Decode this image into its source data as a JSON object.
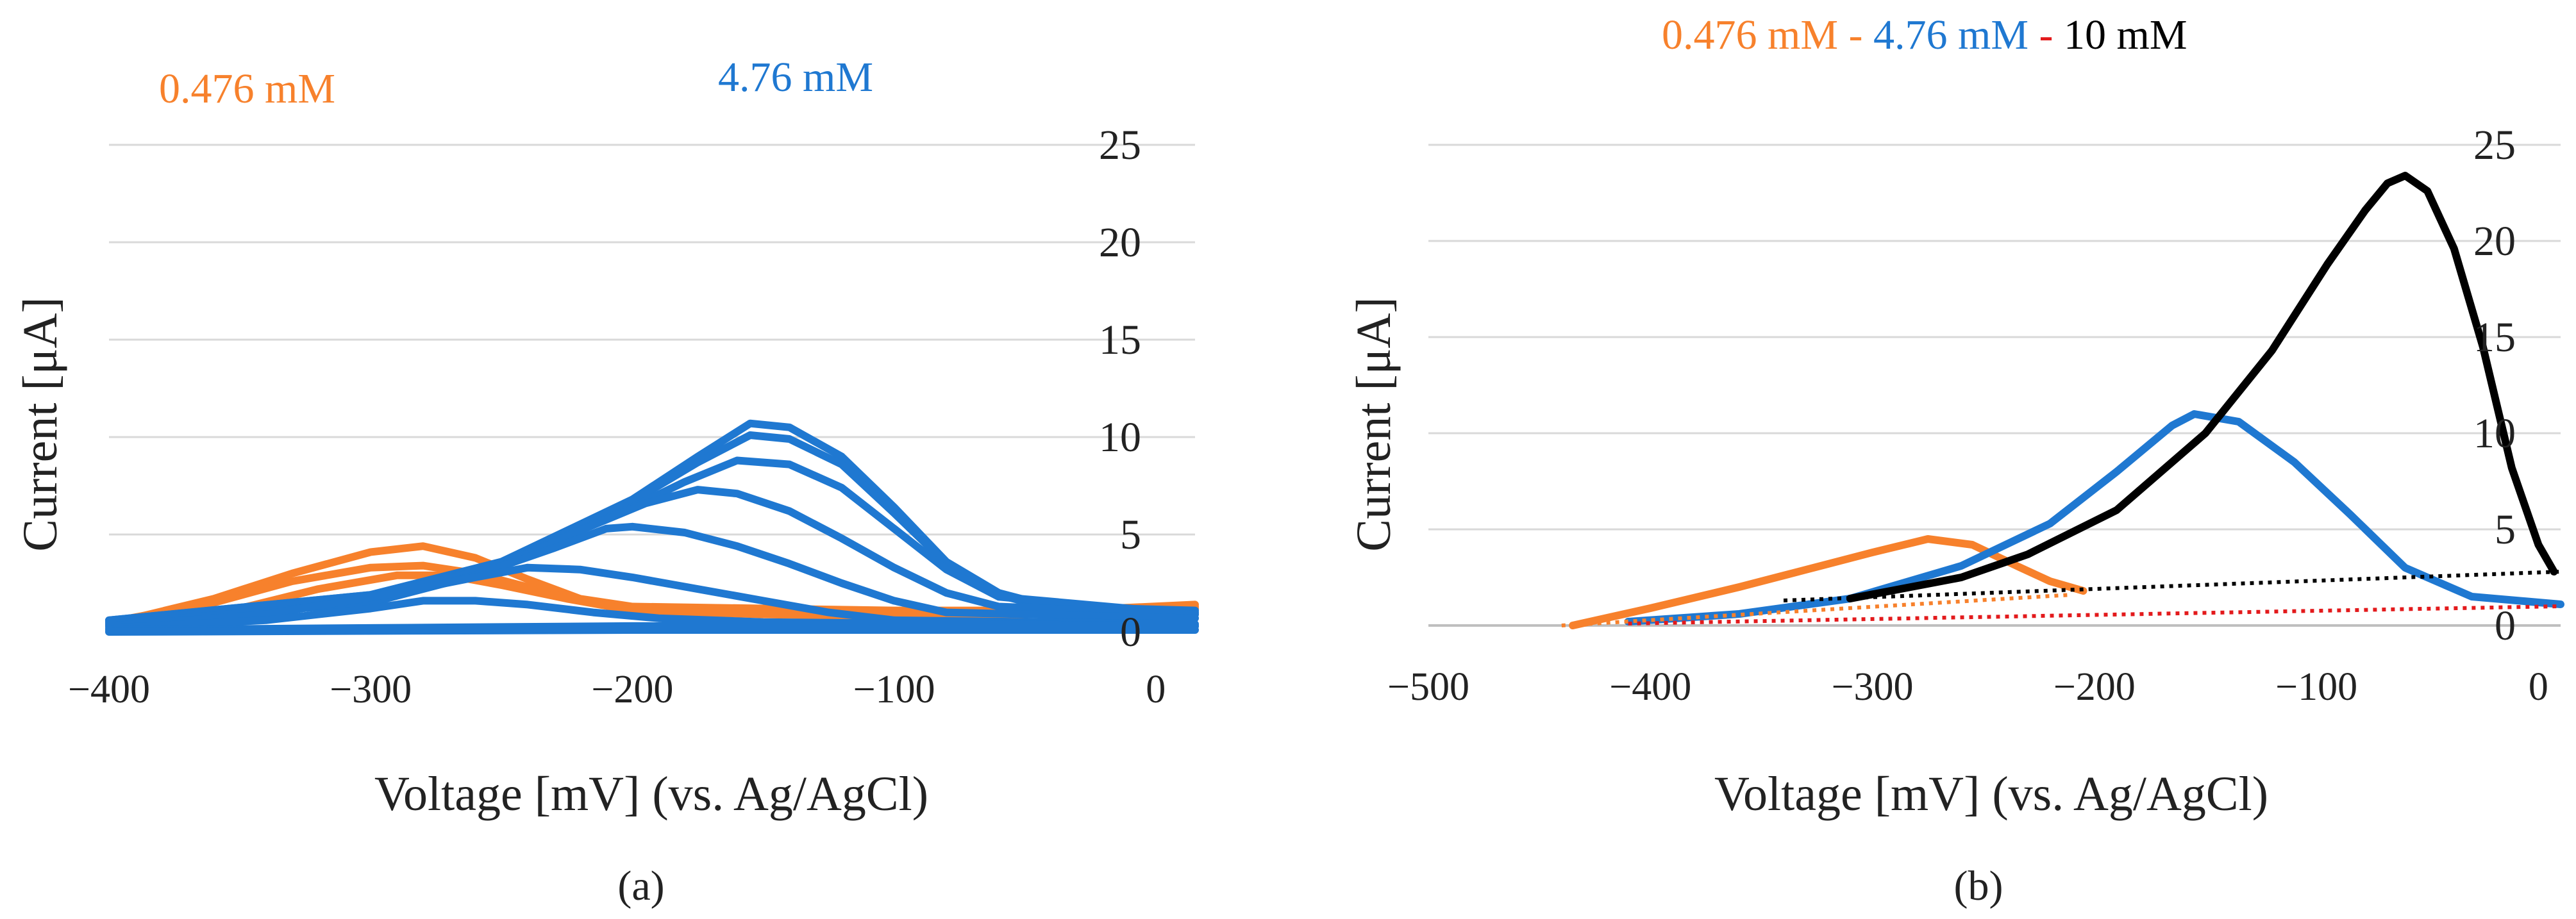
{
  "colors": {
    "orange": "#F7812C",
    "blue": "#1F78D1",
    "black": "#000000",
    "red": "#E31A1C",
    "grid": "#D9D9D9",
    "axis": "#BFBFBF",
    "text": "#222222"
  },
  "chart_data": [
    {
      "id": "a",
      "type": "line",
      "panel_label": "(a)",
      "xlabel": "Voltage [mV] (vs. Ag/AgCl)",
      "ylabel": "Current [μA]",
      "xlim": [
        -400,
        15
      ],
      "ylim": [
        0,
        25
      ],
      "xticks": [
        -400,
        -300,
        -200,
        -100,
        0
      ],
      "xtick_labels": [
        "−400",
        "−300",
        "−200",
        "−100",
        "0"
      ],
      "yticks": [
        0,
        5,
        10,
        15,
        20,
        25
      ],
      "ytick_labels": [
        "0",
        "5",
        "10",
        "15",
        "20",
        "25"
      ],
      "legend": [
        {
          "text": "0.476 mM",
          "color": "#F7812C"
        },
        {
          "text": "4.76 mM",
          "color": "#1F78D1"
        }
      ],
      "series": [
        {
          "name": "0.476 mM",
          "color": "#F7812C",
          "dashed": false,
          "width": 12,
          "points": [
            [
              -400,
              0.4
            ],
            [
              -360,
              1.7
            ],
            [
              -330,
              3.0
            ],
            [
              -300,
              4.1
            ],
            [
              -280,
              4.4
            ],
            [
              -260,
              3.8
            ],
            [
              -240,
              2.7
            ],
            [
              -220,
              1.7
            ],
            [
              -200,
              1.3
            ],
            [
              -150,
              1.2
            ],
            [
              -100,
              1.1
            ],
            [
              -50,
              1.1
            ],
            [
              15,
              1.3
            ]
          ]
        },
        {
          "name": "0.476 mM",
          "color": "#F7812C",
          "dashed": false,
          "width": 12,
          "points": [
            [
              -400,
              0.5
            ],
            [
              -360,
              1.5
            ],
            [
              -330,
              2.6
            ],
            [
              -300,
              3.3
            ],
            [
              -280,
              3.4
            ],
            [
              -260,
              3.0
            ],
            [
              -240,
              2.3
            ],
            [
              -220,
              1.6
            ],
            [
              -200,
              1.2
            ],
            [
              -150,
              1.0
            ],
            [
              -100,
              0.9
            ],
            [
              -50,
              1.0
            ],
            [
              15,
              1.4
            ]
          ]
        },
        {
          "name": "0.476 mM",
          "color": "#F7812C",
          "dashed": false,
          "width": 12,
          "points": [
            [
              -400,
              0.3
            ],
            [
              -350,
              1.2
            ],
            [
              -320,
              2.2
            ],
            [
              -290,
              2.9
            ],
            [
              -270,
              2.9
            ],
            [
              -250,
              2.4
            ],
            [
              -225,
              1.7
            ],
            [
              -200,
              1.1
            ],
            [
              -150,
              0.9
            ],
            [
              -100,
              0.8
            ],
            [
              -50,
              0.9
            ],
            [
              15,
              1.2
            ]
          ]
        },
        {
          "name": "4.76 mM",
          "color": "#1F78D1",
          "dashed": false,
          "width": 12,
          "points": [
            [
              -400,
              0.6
            ],
            [
              -300,
              1.9
            ],
            [
              -250,
              3.6
            ],
            [
              -200,
              6.8
            ],
            [
              -175,
              9.0
            ],
            [
              -155,
              10.7
            ],
            [
              -140,
              10.5
            ],
            [
              -120,
              9.0
            ],
            [
              -100,
              6.4
            ],
            [
              -80,
              3.6
            ],
            [
              -60,
              2.0
            ],
            [
              -40,
              1.3
            ],
            [
              15,
              1.1
            ]
          ]
        },
        {
          "name": "4.76 mM",
          "color": "#1F78D1",
          "dashed": false,
          "width": 12,
          "points": [
            [
              -400,
              0.6
            ],
            [
              -300,
              1.9
            ],
            [
              -250,
              3.6
            ],
            [
              -200,
              6.7
            ],
            [
              -175,
              8.7
            ],
            [
              -155,
              10.1
            ],
            [
              -140,
              9.9
            ],
            [
              -120,
              8.6
            ],
            [
              -100,
              6.1
            ],
            [
              -80,
              3.5
            ],
            [
              -60,
              1.9
            ],
            [
              -40,
              1.2
            ],
            [
              15,
              1.0
            ]
          ]
        },
        {
          "name": "4.76 mM",
          "color": "#1F78D1",
          "dashed": false,
          "width": 12,
          "points": [
            [
              -400,
              0.5
            ],
            [
              -300,
              1.8
            ],
            [
              -250,
              3.5
            ],
            [
              -200,
              6.4
            ],
            [
              -180,
              7.7
            ],
            [
              -160,
              8.8
            ],
            [
              -140,
              8.6
            ],
            [
              -120,
              7.4
            ],
            [
              -100,
              5.3
            ],
            [
              -80,
              3.2
            ],
            [
              -60,
              1.8
            ],
            [
              15,
              0.9
            ]
          ]
        },
        {
          "name": "4.76 mM",
          "color": "#1F78D1",
          "dashed": false,
          "width": 12,
          "points": [
            [
              -400,
              0.5
            ],
            [
              -300,
              1.8
            ],
            [
              -250,
              3.4
            ],
            [
              -220,
              5.2
            ],
            [
              -195,
              6.6
            ],
            [
              -175,
              7.3
            ],
            [
              -160,
              7.1
            ],
            [
              -140,
              6.2
            ],
            [
              -120,
              4.8
            ],
            [
              -100,
              3.3
            ],
            [
              -80,
              2.0
            ],
            [
              -60,
              1.3
            ],
            [
              15,
              0.9
            ]
          ]
        },
        {
          "name": "4.76 mM",
          "color": "#1F78D1",
          "dashed": false,
          "width": 12,
          "points": [
            [
              -400,
              0.4
            ],
            [
              -300,
              1.5
            ],
            [
              -260,
              2.9
            ],
            [
              -230,
              4.3
            ],
            [
              -210,
              5.3
            ],
            [
              -200,
              5.4
            ],
            [
              -180,
              5.1
            ],
            [
              -160,
              4.4
            ],
            [
              -140,
              3.5
            ],
            [
              -120,
              2.5
            ],
            [
              -100,
              1.6
            ],
            [
              -80,
              1.0
            ],
            [
              15,
              0.7
            ]
          ]
        },
        {
          "name": "4.76 mM",
          "color": "#1F78D1",
          "dashed": false,
          "width": 12,
          "points": [
            [
              -400,
              0.3
            ],
            [
              -340,
              0.9
            ],
            [
              -290,
              2.0
            ],
            [
              -260,
              2.8
            ],
            [
              -240,
              3.3
            ],
            [
              -220,
              3.2
            ],
            [
              -200,
              2.8
            ],
            [
              -175,
              2.2
            ],
            [
              -150,
              1.6
            ],
            [
              -125,
              1.0
            ],
            [
              -100,
              0.6
            ],
            [
              15,
              0.4
            ]
          ]
        },
        {
          "name": "4.76 mM",
          "color": "#1F78D1",
          "dashed": false,
          "width": 12,
          "points": [
            [
              -400,
              0.2
            ],
            [
              -340,
              0.6
            ],
            [
              -300,
              1.2
            ],
            [
              -280,
              1.6
            ],
            [
              -260,
              1.6
            ],
            [
              -240,
              1.4
            ],
            [
              -215,
              1.0
            ],
            [
              -190,
              0.7
            ],
            [
              -150,
              0.5
            ],
            [
              15,
              0.3
            ]
          ]
        },
        {
          "name": "4.76 mM",
          "color": "#1F78D1",
          "dashed": false,
          "width": 12,
          "points": [
            [
              -400,
              0.1
            ],
            [
              -300,
              0.2
            ],
            [
              -200,
              0.3
            ],
            [
              -100,
              0.3
            ],
            [
              15,
              0.3
            ]
          ]
        },
        {
          "name": "4.76 mM",
          "color": "#1F78D1",
          "dashed": false,
          "width": 12,
          "points": [
            [
              -400,
              0.0
            ],
            [
              -200,
              0.1
            ],
            [
              15,
              0.1
            ]
          ]
        }
      ]
    },
    {
      "id": "b",
      "type": "line",
      "panel_label": "(b)",
      "xlabel": "Voltage [mV] (vs. Ag/AgCl)",
      "ylabel": "Current [μA]",
      "xlim": [
        -500,
        10
      ],
      "ylim": [
        0,
        25
      ],
      "xticks": [
        -500,
        -400,
        -300,
        -200,
        -100,
        0
      ],
      "xtick_labels": [
        "−500",
        "−400",
        "−300",
        "−200",
        "−100",
        "0"
      ],
      "yticks": [
        0,
        5,
        10,
        15,
        20,
        25
      ],
      "ytick_labels": [
        "0",
        "5",
        "10",
        "15",
        "20",
        "25"
      ],
      "legend": [
        {
          "text": "0.476 mM",
          "color": "#F7812C"
        },
        {
          "text": " - ",
          "color": "#F7812C"
        },
        {
          "text": "4.76 mM",
          "color": "#1F78D1"
        },
        {
          "text": " - ",
          "color": "#E31A1C"
        },
        {
          "text": "10 mM",
          "color": "#000000"
        }
      ],
      "series": [
        {
          "name": "0.476 mM",
          "color": "#F7812C",
          "dashed": false,
          "width": 12,
          "points": [
            [
              -435,
              0.0
            ],
            [
              -400,
              0.9
            ],
            [
              -360,
              2.0
            ],
            [
              -330,
              2.9
            ],
            [
              -300,
              3.8
            ],
            [
              -275,
              4.5
            ],
            [
              -255,
              4.2
            ],
            [
              -235,
              3.1
            ],
            [
              -220,
              2.3
            ],
            [
              -205,
              1.8
            ]
          ]
        },
        {
          "name": "4.76 mM",
          "color": "#1F78D1",
          "dashed": false,
          "width": 12,
          "points": [
            [
              -410,
              0.2
            ],
            [
              -360,
              0.6
            ],
            [
              -310,
              1.4
            ],
            [
              -260,
              3.1
            ],
            [
              -220,
              5.3
            ],
            [
              -190,
              8.0
            ],
            [
              -165,
              10.4
            ],
            [
              -155,
              11.0
            ],
            [
              -135,
              10.6
            ],
            [
              -110,
              8.5
            ],
            [
              -85,
              5.8
            ],
            [
              -60,
              3.0
            ],
            [
              -30,
              1.5
            ],
            [
              0,
              1.2
            ],
            [
              10,
              1.1
            ]
          ]
        },
        {
          "name": "10 mM",
          "color": "#000000",
          "dashed": false,
          "width": 12,
          "points": [
            [
              -310,
              1.4
            ],
            [
              -260,
              2.5
            ],
            [
              -230,
              3.7
            ],
            [
              -190,
              6.0
            ],
            [
              -150,
              10.0
            ],
            [
              -120,
              14.3
            ],
            [
              -95,
              18.8
            ],
            [
              -78,
              21.6
            ],
            [
              -68,
              23.0
            ],
            [
              -60,
              23.4
            ],
            [
              -50,
              22.6
            ],
            [
              -38,
              19.6
            ],
            [
              -25,
              14.5
            ],
            [
              -12,
              8.2
            ],
            [
              0,
              4.2
            ],
            [
              7,
              2.8
            ]
          ]
        },
        {
          "name": "baseline 0.476 mM",
          "color": "#F7812C",
          "dashed": true,
          "width": 6,
          "points": [
            [
              -440,
              0.0
            ],
            [
              -210,
              1.6
            ]
          ]
        },
        {
          "name": "baseline 4.76 mM",
          "color": "#E31A1C",
          "dashed": true,
          "width": 6,
          "points": [
            [
              -410,
              0.1
            ],
            [
              10,
              1.0
            ]
          ]
        },
        {
          "name": "baseline 10 mM",
          "color": "#000000",
          "dashed": true,
          "width": 6,
          "points": [
            [
              -340,
              1.3
            ],
            [
              10,
              2.8
            ]
          ]
        }
      ]
    }
  ]
}
